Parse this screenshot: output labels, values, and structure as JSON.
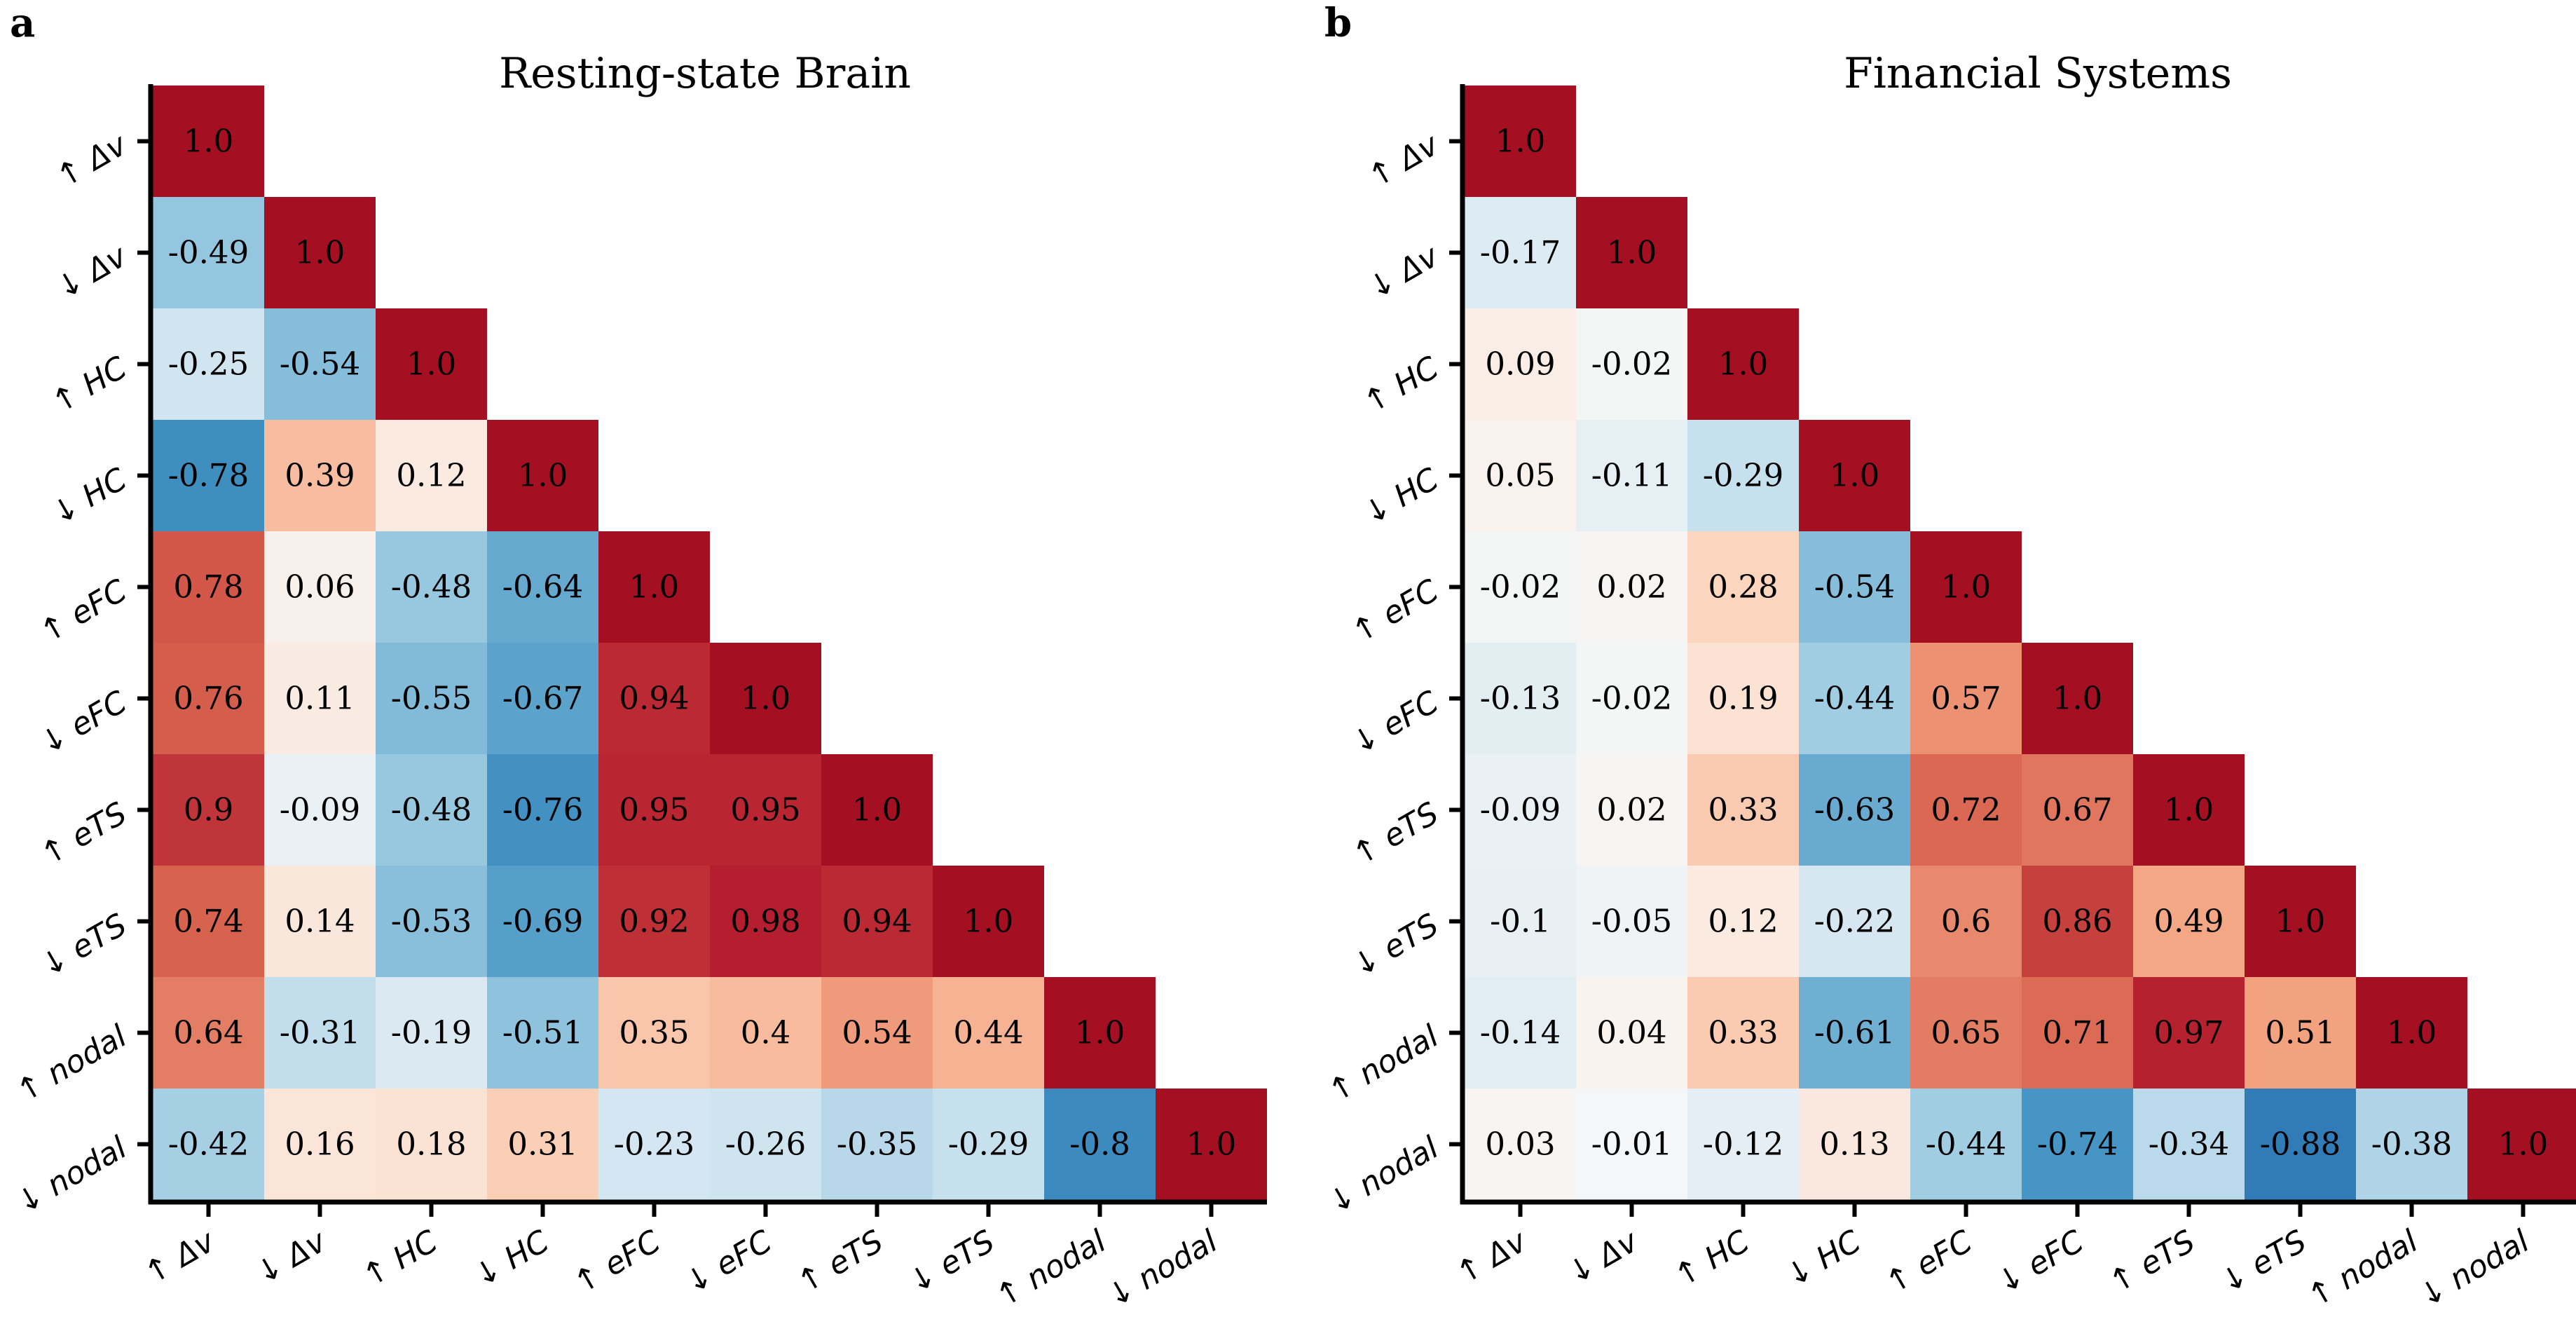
{
  "chart_data": [
    {
      "type": "heatmap",
      "panel": "a",
      "title": "Resting-state Brain",
      "labels": [
        "↑ Δv",
        "↓ Δv",
        "↑ HC",
        "↓ HC",
        "↑ eFC",
        "↓ eFC",
        "↑ eTS",
        "↓ eTS",
        "↑ nodal",
        "↓ nodal"
      ],
      "matrix": [
        [
          1.0
        ],
        [
          -0.49,
          1.0
        ],
        [
          -0.25,
          -0.54,
          1.0
        ],
        [
          -0.78,
          0.39,
          0.12,
          1.0
        ],
        [
          0.78,
          0.06,
          -0.48,
          -0.64,
          1.0
        ],
        [
          0.76,
          0.11,
          -0.55,
          -0.67,
          0.94,
          1.0
        ],
        [
          0.9,
          -0.09,
          -0.48,
          -0.76,
          0.95,
          0.95,
          1.0
        ],
        [
          0.74,
          0.14,
          -0.53,
          -0.69,
          0.92,
          0.98,
          0.94,
          1.0
        ],
        [
          0.64,
          -0.31,
          -0.19,
          -0.51,
          0.35,
          0.4,
          0.54,
          0.44,
          1.0
        ],
        [
          -0.42,
          0.16,
          0.18,
          0.31,
          -0.23,
          -0.26,
          -0.35,
          -0.29,
          -0.8,
          1.0
        ]
      ],
      "cell_text": [
        [
          "1.0"
        ],
        [
          "-0.49",
          "1.0"
        ],
        [
          "-0.25",
          "-0.54",
          "1.0"
        ],
        [
          "-0.78",
          "0.39",
          "0.12",
          "1.0"
        ],
        [
          "0.78",
          "0.06",
          "-0.48",
          "-0.64",
          "1.0"
        ],
        [
          "0.76",
          "0.11",
          "-0.55",
          "-0.67",
          "0.94",
          "1.0"
        ],
        [
          "0.9",
          "-0.09",
          "-0.48",
          "-0.76",
          "0.95",
          "0.95",
          "1.0"
        ],
        [
          "0.74",
          "0.14",
          "-0.53",
          "-0.69",
          "0.92",
          "0.98",
          "0.94",
          "1.0"
        ],
        [
          "0.64",
          "-0.31",
          "-0.19",
          "-0.51",
          "0.35",
          "0.4",
          "0.54",
          "0.44",
          "1.0"
        ],
        [
          "-0.42",
          "0.16",
          "0.18",
          "0.31",
          "-0.23",
          "-0.26",
          "-0.35",
          "-0.29",
          "-0.8",
          "1.0"
        ]
      ],
      "vmin": -1,
      "vmax": 1,
      "colormap": "RdBu_r",
      "triangle": "lower"
    },
    {
      "type": "heatmap",
      "panel": "b",
      "title": "Financial Systems",
      "labels": [
        "↑ Δv",
        "↓ Δv",
        "↑ HC",
        "↓ HC",
        "↑ eFC",
        "↓ eFC",
        "↑ eTS",
        "↓ eTS",
        "↑ nodal",
        "↓ nodal"
      ],
      "matrix": [
        [
          1.0
        ],
        [
          -0.17,
          1.0
        ],
        [
          0.09,
          -0.02,
          1.0
        ],
        [
          0.05,
          -0.11,
          -0.29,
          1.0
        ],
        [
          -0.02,
          0.02,
          0.28,
          -0.54,
          1.0
        ],
        [
          -0.13,
          -0.02,
          0.19,
          -0.44,
          0.57,
          1.0
        ],
        [
          -0.09,
          0.02,
          0.33,
          -0.63,
          0.72,
          0.67,
          1.0
        ],
        [
          -0.1,
          -0.05,
          0.12,
          -0.22,
          0.6,
          0.86,
          0.49,
          1.0
        ],
        [
          -0.14,
          0.04,
          0.33,
          -0.61,
          0.65,
          0.71,
          0.97,
          0.51,
          1.0
        ],
        [
          0.03,
          -0.01,
          -0.12,
          0.13,
          -0.44,
          -0.74,
          -0.34,
          -0.88,
          -0.38,
          1.0
        ]
      ],
      "cell_text": [
        [
          "1.0"
        ],
        [
          "-0.17",
          "1.0"
        ],
        [
          "0.09",
          "-0.02",
          "1.0"
        ],
        [
          "0.05",
          "-0.11",
          "-0.29",
          "1.0"
        ],
        [
          "-0.02",
          "0.02",
          "0.28",
          "-0.54",
          "1.0"
        ],
        [
          "-0.13",
          "-0.02",
          "0.19",
          "-0.44",
          "0.57",
          "1.0"
        ],
        [
          "-0.09",
          "0.02",
          "0.33",
          "-0.63",
          "0.72",
          "0.67",
          "1.0"
        ],
        [
          "-0.1",
          "-0.05",
          "0.12",
          "-0.22",
          "0.6",
          "0.86",
          "0.49",
          "1.0"
        ],
        [
          "-0.14",
          "0.04",
          "0.33",
          "-0.61",
          "0.65",
          "0.71",
          "0.97",
          "0.51",
          "1.0"
        ],
        [
          "0.03",
          "-0.01",
          "-0.12",
          "0.13",
          "-0.44",
          "-0.74",
          "-0.34",
          "-0.88",
          "-0.38",
          "1.0"
        ]
      ],
      "vmin": -1,
      "vmax": 1,
      "colormap": "RdBu_r",
      "triangle": "lower"
    }
  ],
  "colors": {
    "neg_strong": "#2166ac",
    "neg_mid": "#4393c3",
    "neg_light": "#92c5de",
    "neg_pale": "#d1e5f0",
    "neutral": "#f7f7f7",
    "pos_pale": "#fddbc7",
    "pos_light": "#f4a582",
    "pos_mid": "#d6604d",
    "pos_strong": "#b2182b",
    "diag_cap": "#a50f22"
  }
}
